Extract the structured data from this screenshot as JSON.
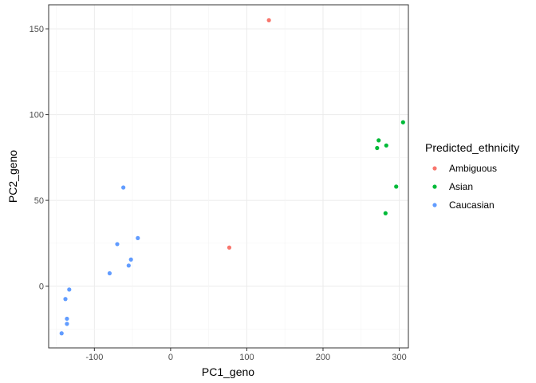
{
  "chart_data": {
    "type": "scatter",
    "title": "",
    "xlabel": "PC1_geno",
    "ylabel": "PC2_geno",
    "xlim": [
      -160,
      312
    ],
    "ylim": [
      -36,
      164
    ],
    "x_ticks": [
      -100,
      0,
      100,
      200,
      300
    ],
    "y_ticks": [
      0,
      50,
      100,
      150
    ],
    "grid": true,
    "legend_position": "right",
    "legend_title": "Predicted_ethnicity",
    "series": [
      {
        "name": "Ambiguous",
        "color": "#F8766D",
        "points": [
          [
            129,
            155
          ],
          [
            77,
            22.5
          ]
        ]
      },
      {
        "name": "Asian",
        "color": "#00BA38",
        "points": [
          [
            305,
            95.5
          ],
          [
            273,
            85
          ],
          [
            283,
            82
          ],
          [
            271,
            80.5
          ],
          [
            296,
            58
          ],
          [
            282,
            42.5
          ]
        ]
      },
      {
        "name": "Caucasian",
        "color": "#619CFF",
        "points": [
          [
            -62,
            57.5
          ],
          [
            -43,
            28
          ],
          [
            -70,
            24.5
          ],
          [
            -52,
            15.5
          ],
          [
            -55,
            12
          ],
          [
            -80,
            7.5
          ],
          [
            -133,
            -2
          ],
          [
            -138,
            -7.5
          ],
          [
            -136,
            -19
          ],
          [
            -136,
            -22
          ],
          [
            -143,
            -27.5
          ]
        ]
      }
    ]
  }
}
